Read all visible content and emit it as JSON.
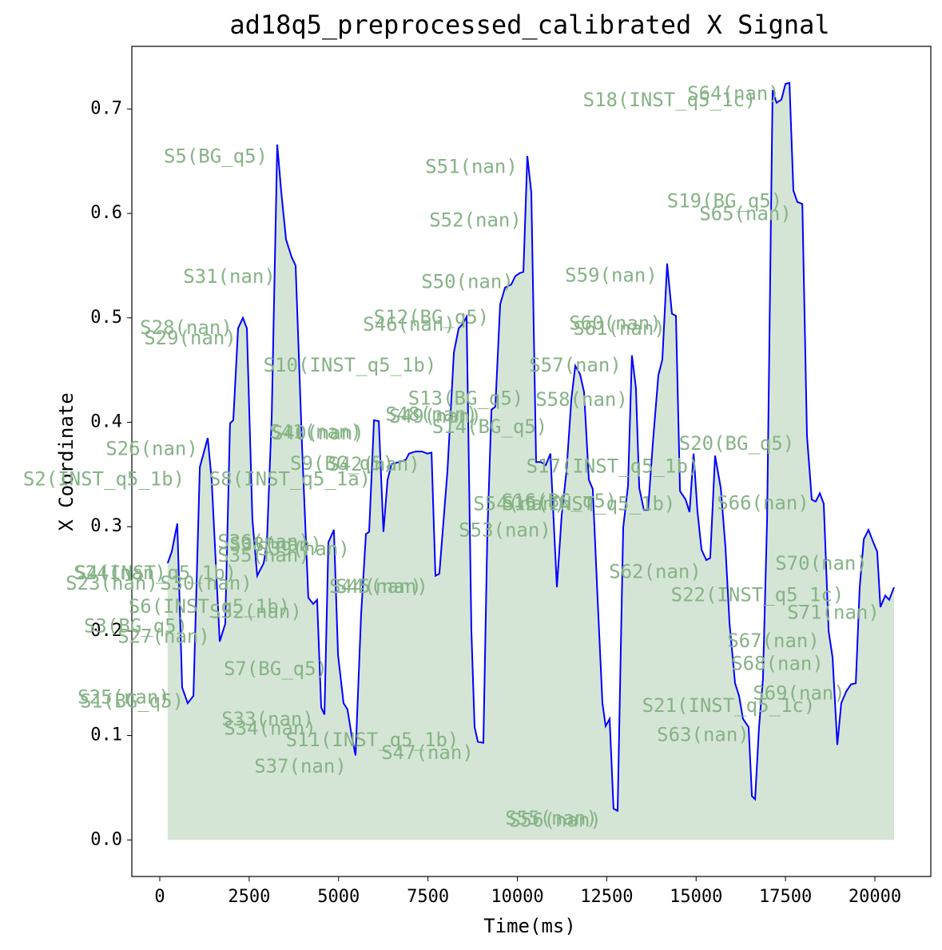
{
  "chart_data": {
    "type": "line",
    "title": "ad18q5_preprocessed_calibrated X Signal",
    "x_label": "Time(ms)",
    "y_label": "X Coordinate",
    "color": "#0000ff",
    "area_color": "#b9d4b9",
    "x": [
      220,
      335,
      490,
      625,
      780,
      940,
      1120,
      1340,
      1450,
      1675,
      1830,
      1965,
      2055,
      2190,
      2325,
      2435,
      2590,
      2725,
      2905,
      2995,
      3130,
      3285,
      3400,
      3530,
      3690,
      3800,
      3980,
      4155,
      4290,
      4400,
      4515,
      4605,
      4715,
      4870,
      4985,
      5140,
      5250,
      5365,
      5475,
      5630,
      5765,
      5855,
      5990,
      6125,
      6255,
      6370,
      6480,
      6705,
      6880,
      6970,
      7150,
      7330,
      7485,
      7600,
      7710,
      7820,
      8045,
      8225,
      8360,
      8470,
      8580,
      8715,
      8805,
      8895,
      9050,
      9160,
      9275,
      9385,
      9520,
      9655,
      9830,
      9945,
      10075,
      10170,
      10280,
      10390,
      10525,
      10660,
      10795,
      10925,
      11105,
      11240,
      11375,
      11510,
      11620,
      11755,
      11865,
      12000,
      12110,
      12245,
      12380,
      12470,
      12580,
      12690,
      12805,
      12960,
      13095,
      13205,
      13315,
      13410,
      13540,
      13655,
      13790,
      13945,
      14055,
      14190,
      14325,
      14435,
      14550,
      14705,
      14815,
      14930,
      15040,
      15150,
      15285,
      15395,
      15530,
      15690,
      15820,
      15935,
      16090,
      16200,
      16310,
      16470,
      16560,
      16650,
      16760,
      16870,
      16985,
      17140,
      17250,
      17385,
      17500,
      17610,
      17720,
      17830,
      17970,
      18100,
      18235,
      18345,
      18460,
      18570,
      18705,
      18815,
      18950,
      19060,
      19195,
      19330,
      19465,
      19575,
      19690,
      19820,
      19955,
      20065,
      20155,
      20290,
      20400,
      20535
    ],
    "values": [
      0.265,
      0.276,
      0.303,
      0.146,
      0.131,
      0.138,
      0.357,
      0.385,
      0.345,
      0.19,
      0.207,
      0.399,
      0.402,
      0.49,
      0.5,
      0.49,
      0.307,
      0.253,
      0.265,
      0.284,
      0.406,
      0.666,
      0.62,
      0.575,
      0.558,
      0.55,
      0.376,
      0.232,
      0.226,
      0.23,
      0.127,
      0.12,
      0.285,
      0.297,
      0.177,
      0.131,
      0.125,
      0.1,
      0.081,
      0.215,
      0.293,
      0.295,
      0.402,
      0.401,
      0.295,
      0.345,
      0.36,
      0.362,
      0.364,
      0.37,
      0.372,
      0.372,
      0.37,
      0.371,
      0.253,
      0.255,
      0.353,
      0.467,
      0.49,
      0.494,
      0.501,
      0.2,
      0.108,
      0.094,
      0.093,
      0.291,
      0.412,
      0.415,
      0.513,
      0.529,
      0.532,
      0.54,
      0.543,
      0.544,
      0.655,
      0.62,
      0.362,
      0.362,
      0.359,
      0.37,
      0.242,
      0.311,
      0.353,
      0.422,
      0.454,
      0.446,
      0.429,
      0.345,
      0.336,
      0.23,
      0.131,
      0.109,
      0.116,
      0.03,
      0.028,
      0.299,
      0.339,
      0.464,
      0.433,
      0.337,
      0.316,
      0.316,
      0.38,
      0.445,
      0.46,
      0.552,
      0.504,
      0.502,
      0.334,
      0.326,
      0.314,
      0.37,
      0.314,
      0.278,
      0.268,
      0.27,
      0.368,
      0.337,
      0.28,
      0.207,
      0.15,
      0.138,
      0.116,
      0.108,
      0.042,
      0.039,
      0.108,
      0.154,
      0.307,
      0.718,
      0.706,
      0.709,
      0.724,
      0.725,
      0.622,
      0.611,
      0.609,
      0.387,
      0.326,
      0.324,
      0.332,
      0.322,
      0.2,
      0.175,
      0.091,
      0.131,
      0.142,
      0.149,
      0.15,
      0.242,
      0.288,
      0.297,
      0.285,
      0.276,
      0.223,
      0.234,
      0.23,
      0.242
    ],
    "xlim": [
      -782,
      21564
    ],
    "ylim": [
      -0.035,
      0.76
    ],
    "xticks": [
      0,
      2500,
      5000,
      7500,
      10000,
      12500,
      15000,
      17500,
      20000
    ],
    "yticks": [
      {
        "value": 0,
        "label": "0.0"
      },
      0.1,
      0.2,
      0.3,
      0.4,
      0.5,
      0.6,
      0.7
    ],
    "annotation_color": "#86b386",
    "annotations": [
      {
        "text": "S5(BG_q5)",
        "x": 1564,
        "y": 0.654
      },
      {
        "text": "S51(nan)",
        "x": 8715,
        "y": 0.644
      },
      {
        "text": "S52(nan)",
        "x": 8827,
        "y": 0.593
      },
      {
        "text": "S31(nan)",
        "x": 1944,
        "y": 0.539
      },
      {
        "text": "S50(nan)",
        "x": 8603,
        "y": 0.534
      },
      {
        "text": "S28(nan)",
        "x": 737,
        "y": 0.49
      },
      {
        "text": "S29(nan)",
        "x": 849,
        "y": 0.48
      },
      {
        "text": "S10(INST_q5_1b)",
        "x": 5318,
        "y": 0.454
      },
      {
        "text": "S12(BG_q5)",
        "x": 7598,
        "y": 0.5
      },
      {
        "text": "S46(nan)",
        "x": 6972,
        "y": 0.493
      },
      {
        "text": "S18(INST_q5_1c)",
        "x": 14257,
        "y": 0.708
      },
      {
        "text": "S64(nan)",
        "x": 16044,
        "y": 0.714
      },
      {
        "text": "S19(BG_q5)",
        "x": 15799,
        "y": 0.611
      },
      {
        "text": "S65(nan)",
        "x": 16380,
        "y": 0.599
      },
      {
        "text": "S59(nan)",
        "x": 12625,
        "y": 0.54
      },
      {
        "text": "S60(nan)",
        "x": 12737,
        "y": 0.494
      },
      {
        "text": "S61(nan)",
        "x": 12849,
        "y": 0.489
      },
      {
        "text": "S57(nan)",
        "x": 11620,
        "y": 0.454
      },
      {
        "text": "S58(nan)",
        "x": 11799,
        "y": 0.421
      },
      {
        "text": "S13(BG_q5)",
        "x": 8558,
        "y": 0.422
      },
      {
        "text": "S48(nan)",
        "x": 7598,
        "y": 0.407
      },
      {
        "text": "S49(nan)",
        "x": 7709,
        "y": 0.405
      },
      {
        "text": "S14(BG_q5)",
        "x": 9229,
        "y": 0.395
      },
      {
        "text": "S41(nan)",
        "x": 4357,
        "y": 0.39
      },
      {
        "text": "S40(nan)",
        "x": 4424,
        "y": 0.389
      },
      {
        "text": "S26(nan)",
        "x": -223,
        "y": 0.374
      },
      {
        "text": "S20(BG_q5)",
        "x": 16134,
        "y": 0.379
      },
      {
        "text": "S17(INST_q5_1b)",
        "x": 12670,
        "y": 0.357
      },
      {
        "text": "S2(INST_q5_1b)",
        "x": -1564,
        "y": 0.345
      },
      {
        "text": "S8(INST_q5_1a)",
        "x": 3642,
        "y": 0.345
      },
      {
        "text": "S9(BG_q5)",
        "x": 5095,
        "y": 0.36
      },
      {
        "text": "S42(nan)",
        "x": 5989,
        "y": 0.359
      },
      {
        "text": "S66(nan)",
        "x": 16871,
        "y": 0.322
      },
      {
        "text": "S54(nan)",
        "x": 10056,
        "y": 0.321
      },
      {
        "text": "S16(BG_q5)",
        "x": 11173,
        "y": 0.324
      },
      {
        "text": "S15(INST_q5_1b)",
        "x": 12000,
        "y": 0.321
      },
      {
        "text": "S53(nan)",
        "x": 9653,
        "y": 0.296
      },
      {
        "text": "S36(nan)",
        "x": 2905,
        "y": 0.285
      },
      {
        "text": "S38(nan)",
        "x": 3240,
        "y": 0.282
      },
      {
        "text": "S39(nan)",
        "x": 4022,
        "y": 0.278
      },
      {
        "text": "S35(nan)",
        "x": 2905,
        "y": 0.272
      },
      {
        "text": "S62(nan)",
        "x": 13855,
        "y": 0.256
      },
      {
        "text": "S70(nan)",
        "x": 18503,
        "y": 0.264
      },
      {
        "text": "S4(INST_q5_1b)",
        "x": -112,
        "y": 0.255
      },
      {
        "text": "S24(nan)",
        "x": -1117,
        "y": 0.255
      },
      {
        "text": "S23(nan)",
        "x": -1341,
        "y": 0.245
      },
      {
        "text": "S30(nan)",
        "x": 1296,
        "y": 0.245
      },
      {
        "text": "S44(nan)",
        "x": 6033,
        "y": 0.242
      },
      {
        "text": "S45(nan)",
        "x": 6212,
        "y": 0.242
      },
      {
        "text": "S22(INST_q5_1c)",
        "x": 16715,
        "y": 0.234
      },
      {
        "text": "S6(INST_q5_1b)",
        "x": 1385,
        "y": 0.223
      },
      {
        "text": "S32(nan)",
        "x": 2682,
        "y": 0.218
      },
      {
        "text": "S71(nan)",
        "x": 18838,
        "y": 0.217
      },
      {
        "text": "S3(BG_q5)",
        "x": -670,
        "y": 0.204
      },
      {
        "text": "S27(nan)",
        "x": 112,
        "y": 0.194
      },
      {
        "text": "S67(nan)",
        "x": 17162,
        "y": 0.19
      },
      {
        "text": "S68(nan)",
        "x": 17274,
        "y": 0.168
      },
      {
        "text": "S7(BG_q5)",
        "x": 3240,
        "y": 0.163
      },
      {
        "text": "S69(nan)",
        "x": 17877,
        "y": 0.14
      },
      {
        "text": "S25(nan)",
        "x": -1006,
        "y": 0.136
      },
      {
        "text": "S1(BG_q5)",
        "x": -782,
        "y": 0.132
      },
      {
        "text": "S21(INST_q5_1c)",
        "x": 15910,
        "y": 0.128
      },
      {
        "text": "S33(nan)",
        "x": 3017,
        "y": 0.115
      },
      {
        "text": "S34(nan)",
        "x": 3084,
        "y": 0.106
      },
      {
        "text": "S11(INST_q5_1b)",
        "x": 5944,
        "y": 0.095
      },
      {
        "text": "S47(nan)",
        "x": 7486,
        "y": 0.083
      },
      {
        "text": "S63(nan)",
        "x": 15195,
        "y": 0.1
      },
      {
        "text": "S37(nan)",
        "x": 3933,
        "y": 0.07
      },
      {
        "text": "S55(nan)",
        "x": 10950,
        "y": 0.02
      },
      {
        "text": "S56(nan)",
        "x": 11061,
        "y": 0.018
      }
    ]
  }
}
